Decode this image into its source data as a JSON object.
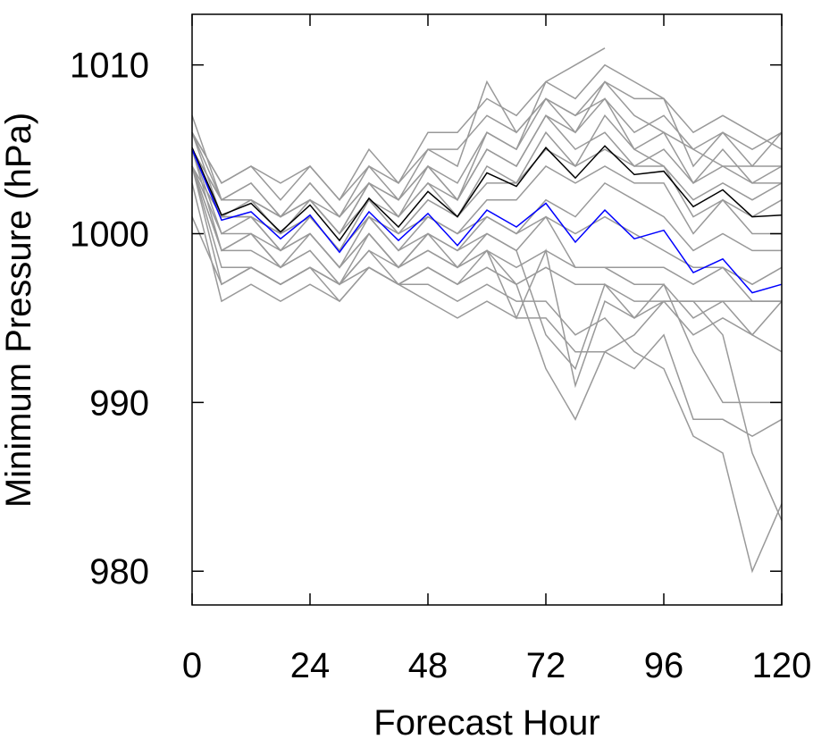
{
  "chart_data": {
    "type": "line",
    "title": "",
    "xlabel": "Forecast Hour",
    "ylabel": "Minimum Pressure (hPa)",
    "xlim": [
      0,
      120
    ],
    "ylim": [
      978,
      1013
    ],
    "x_ticks": [
      0,
      24,
      48,
      72,
      96,
      120
    ],
    "x_tick_labels": [
      "0",
      "24",
      "48",
      "72",
      "96",
      "120"
    ],
    "y_ticks": [
      980,
      990,
      1000,
      1010
    ],
    "y_tick_labels": [
      "980",
      "990",
      "1000",
      "1010"
    ],
    "grid": false,
    "legend": "none",
    "x": [
      0,
      6,
      12,
      18,
      24,
      30,
      36,
      42,
      48,
      54,
      60,
      66,
      72,
      78,
      84,
      90,
      96,
      102,
      108,
      114,
      120
    ],
    "series": [
      {
        "color": "#999999",
        "values": [
          1006,
          1003,
          1004,
          1003,
          1004,
          1002,
          1005,
          1003,
          1006,
          1006,
          1008,
          1007,
          1009,
          1008,
          1010,
          1009,
          1008,
          1006,
          1007,
          1006,
          1005
        ]
      },
      {
        "color": "#999999",
        "values": [
          1005,
          1002,
          1003,
          1001,
          1003,
          1001,
          1004,
          1002,
          1005,
          1004,
          1009,
          1006,
          1008,
          1007,
          1008,
          1006,
          1007,
          1005,
          1006,
          1004,
          1006
        ]
      },
      {
        "color": "#999999",
        "values": [
          1007,
          1002,
          1002,
          1001,
          1002,
          1000,
          1003,
          1001,
          1004,
          1002,
          1006,
          1005,
          1009,
          1010,
          1011,
          null,
          null,
          null,
          null,
          null,
          null
        ]
      },
      {
        "color": "#999999",
        "values": [
          1006,
          1001,
          1002,
          1000,
          1002,
          1000,
          1003,
          1001,
          1003,
          1002,
          1005,
          1004,
          1007,
          1006,
          1009,
          1007,
          1006,
          1005,
          1004,
          1004,
          1004
        ]
      },
      {
        "color": "#999999",
        "values": [
          1005,
          1001,
          1001,
          1000,
          1001,
          999,
          1002,
          1000,
          1002,
          1001,
          1004,
          1003,
          1006,
          1004,
          1007,
          1005,
          1004,
          1002,
          1003,
          1002,
          1003
        ]
      },
      {
        "color": "#999999",
        "values": [
          1005,
          1002,
          1002,
          1001,
          1002,
          1000,
          1002,
          1001,
          1003,
          1001,
          1003,
          1003,
          1005,
          1004,
          1005,
          1004,
          1004,
          1001,
          1002,
          1001,
          1002
        ]
      },
      {
        "color": "#999999",
        "values": [
          1004,
          1001,
          1001,
          999,
          1001,
          999,
          1001,
          999,
          1001,
          1000,
          1002,
          1002,
          1004,
          1003,
          1004,
          1003,
          1003,
          1000,
          1002,
          1000,
          1000
        ]
      },
      {
        "color": "#999999",
        "values": [
          1005,
          1000,
          1001,
          999,
          1000,
          998,
          1001,
          999,
          1000,
          999,
          1001,
          1000,
          1002,
          1001,
          1003,
          1002,
          1001,
          999,
          1000,
          999,
          999
        ]
      },
      {
        "color": "#999999",
        "values": [
          1004,
          1000,
          1000,
          999,
          1000,
          998,
          1000,
          998,
          1000,
          998,
          1000,
          999,
          1001,
          1000,
          1001,
          1000,
          999,
          998,
          998,
          997,
          998
        ]
      },
      {
        "color": "#999999",
        "values": [
          1005,
          999,
          1000,
          998,
          999,
          997,
          1000,
          998,
          999,
          998,
          999,
          998,
          999,
          998,
          998,
          997,
          997,
          995,
          996,
          996,
          996
        ]
      },
      {
        "color": "#999999",
        "values": [
          1004,
          999,
          999,
          998,
          999,
          997,
          999,
          997,
          998,
          997,
          998,
          997,
          998,
          997,
          997,
          996,
          996,
          994,
          995,
          994,
          993
        ]
      },
      {
        "color": "#999999",
        "values": [
          1004,
          998,
          998,
          997,
          998,
          997,
          998,
          997,
          997,
          996,
          997,
          996,
          996,
          994,
          995,
          993,
          992,
          988,
          987,
          980,
          984
        ]
      },
      {
        "color": "#999999",
        "values": [
          1004,
          997,
          998,
          997,
          998,
          996,
          998,
          997,
          996,
          995,
          996,
          995,
          995,
          993,
          993,
          992,
          994,
          989,
          989,
          988,
          989
        ]
      },
      {
        "color": "#999999",
        "values": [
          1003,
          996,
          997,
          996,
          997,
          996,
          998,
          997,
          998,
          997,
          999,
          995,
          999,
          991,
          996,
          995,
          997,
          993,
          990,
          990,
          990
        ]
      },
      {
        "color": "#999999",
        "values": [
          1001,
          997,
          998,
          997,
          998,
          997,
          999,
          998,
          999,
          998,
          999,
          997,
          992,
          989,
          993,
          994,
          996,
          996,
          994,
          987,
          983
        ]
      },
      {
        "color": "#999999",
        "values": [
          1004,
          999,
          1000,
          998,
          1000,
          998,
          1000,
          998,
          1000,
          999,
          1000,
          999,
          994,
          992,
          997,
          995,
          996,
          996,
          996,
          994,
          996
        ]
      },
      {
        "color": "#999999",
        "values": [
          1005,
          1001,
          1001,
          1000,
          1001,
          999,
          1001,
          1000,
          1001,
          1000,
          1001,
          1000,
          1001,
          998,
          998,
          998,
          998,
          997,
          998,
          996,
          996
        ]
      },
      {
        "color": "#999999",
        "values": [
          1006,
          1002,
          1003,
          1001,
          1003,
          1001,
          1003,
          1002,
          1004,
          1003,
          1006,
          1005,
          1008,
          1006,
          1008,
          1005,
          1006,
          1003,
          1005,
          1003,
          1004
        ]
      },
      {
        "color": "#999999",
        "values": [
          1006,
          1003,
          1004,
          1002,
          1004,
          1002,
          1004,
          1003,
          1005,
          1005,
          1007,
          1006,
          1008,
          1007,
          1009,
          1008,
          1008,
          1004,
          1006,
          1005,
          1006
        ]
      },
      {
        "color": "#999999",
        "values": [
          1005,
          1002,
          1002,
          1001,
          1002,
          1001,
          1003,
          1002,
          1004,
          1002,
          1005,
          1004,
          1007,
          1005,
          1006,
          1004,
          1005,
          1003,
          1004,
          1003,
          1003
        ]
      },
      {
        "color": "#000000",
        "values": [
          1005.1,
          1001.1,
          1001.8,
          1000.1,
          1001.7,
          999.6,
          1002.1,
          1000.4,
          1002.5,
          1001.0,
          1003.6,
          1002.8,
          1005.1,
          1003.3,
          1005.2,
          1003.5,
          1003.7,
          1001.6,
          1002.6,
          1001.0,
          1001.1
        ]
      },
      {
        "color": "#0000ff",
        "values": [
          1005,
          1000.8,
          1001.3,
          999.7,
          1001.1,
          998.9,
          1001.3,
          999.6,
          1001.2,
          999.3,
          1001.4,
          1000.4,
          1001.8,
          999.5,
          1001.4,
          999.7,
          1000.2,
          997.7,
          998.5,
          996.5,
          997.0
        ]
      }
    ]
  }
}
